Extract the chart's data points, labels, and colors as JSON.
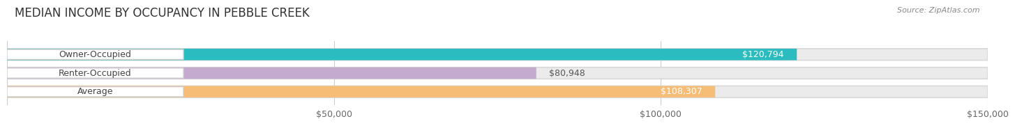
{
  "title": "MEDIAN INCOME BY OCCUPANCY IN PEBBLE CREEK",
  "source": "Source: ZipAtlas.com",
  "categories": [
    "Owner-Occupied",
    "Renter-Occupied",
    "Average"
  ],
  "values": [
    120794,
    80948,
    108307
  ],
  "labels": [
    "$120,794",
    "$80,948",
    "$108,307"
  ],
  "bar_colors": [
    "#2abcbe",
    "#c5aad0",
    "#f5bd76"
  ],
  "bar_bg_colors": [
    "#ebebeb",
    "#ebebeb",
    "#ebebeb"
  ],
  "xlim": [
    0,
    150000
  ],
  "xticks": [
    0,
    50000,
    100000,
    150000
  ],
  "xtick_labels": [
    "$50,000",
    "$100,000",
    "$150,000"
  ],
  "background_color": "#ffffff",
  "bar_height": 0.62,
  "title_fontsize": 12,
  "label_fontsize": 9,
  "source_fontsize": 8,
  "value_label_color_inside": "#ffffff",
  "value_label_color_outside": "#555555",
  "cat_label_color": "#444444"
}
